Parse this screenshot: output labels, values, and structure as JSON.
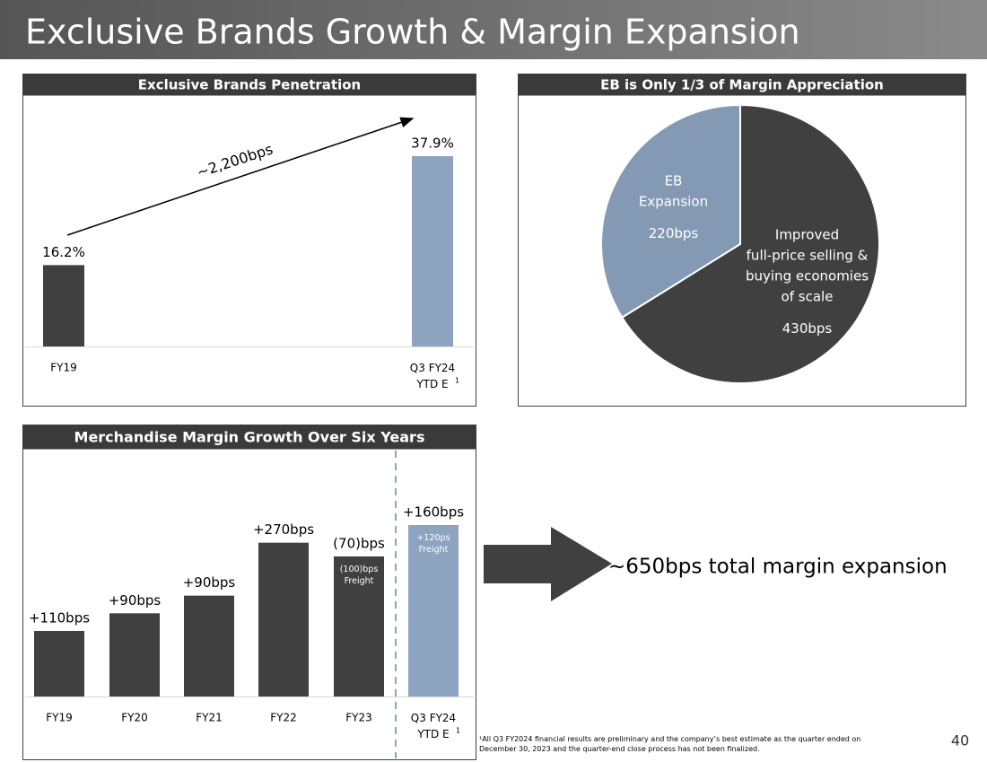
{
  "title": "Exclusive Brands Growth & Margin Expansion",
  "chart_data": [
    {
      "type": "bar",
      "title": "Exclusive Brands Penetration",
      "categories": [
        "FY19",
        "Q3 FY24\nYTD E"
      ],
      "footnote_marks": [
        null,
        "1"
      ],
      "values": [
        16.2,
        37.9
      ],
      "value_labels": [
        "16.2%",
        "37.9%"
      ],
      "colors": [
        "#404040",
        "#8ea3bf"
      ],
      "annotation": "~2,200bps"
    },
    {
      "type": "pie",
      "title": "EB is Only 1/3 of Margin Appreciation",
      "categories": [
        "EB\nExpansion",
        "Improved\nfull-price selling &\nbuying economies\nof scale"
      ],
      "values": [
        220,
        430
      ],
      "value_labels": [
        "220bps",
        "430bps"
      ],
      "colors": [
        "#8499b3",
        "#404040"
      ]
    },
    {
      "type": "bar",
      "cumulative": true,
      "title": "Merchandise Margin Growth Over Six Years",
      "categories": [
        "FY19",
        "FY20",
        "FY21",
        "FY22",
        "FY23",
        "Q3 FY24\nYTD E"
      ],
      "footnote_marks": [
        null,
        null,
        null,
        null,
        null,
        "1"
      ],
      "values": [
        110,
        90,
        90,
        270,
        -70,
        160
      ],
      "value_labels": [
        "+110bps",
        "+90bps",
        "+90bps",
        "+270bps",
        "(70)bps",
        "+160bps"
      ],
      "inner_labels": [
        null,
        null,
        null,
        null,
        "(100)bps\nFreight",
        "+120ps\nFreight"
      ],
      "colors": [
        "#404040",
        "#404040",
        "#404040",
        "#404040",
        "#404040",
        "#8ea3bf"
      ]
    }
  ],
  "callout": "~650bps total margin expansion",
  "footnote": "¹All Q3 FY2024 financial results are preliminary and the company’s best estimate as the quarter ended on\nDecember 30, 2023 and the quarter-end close process has not been finalized.",
  "page_number": "40"
}
